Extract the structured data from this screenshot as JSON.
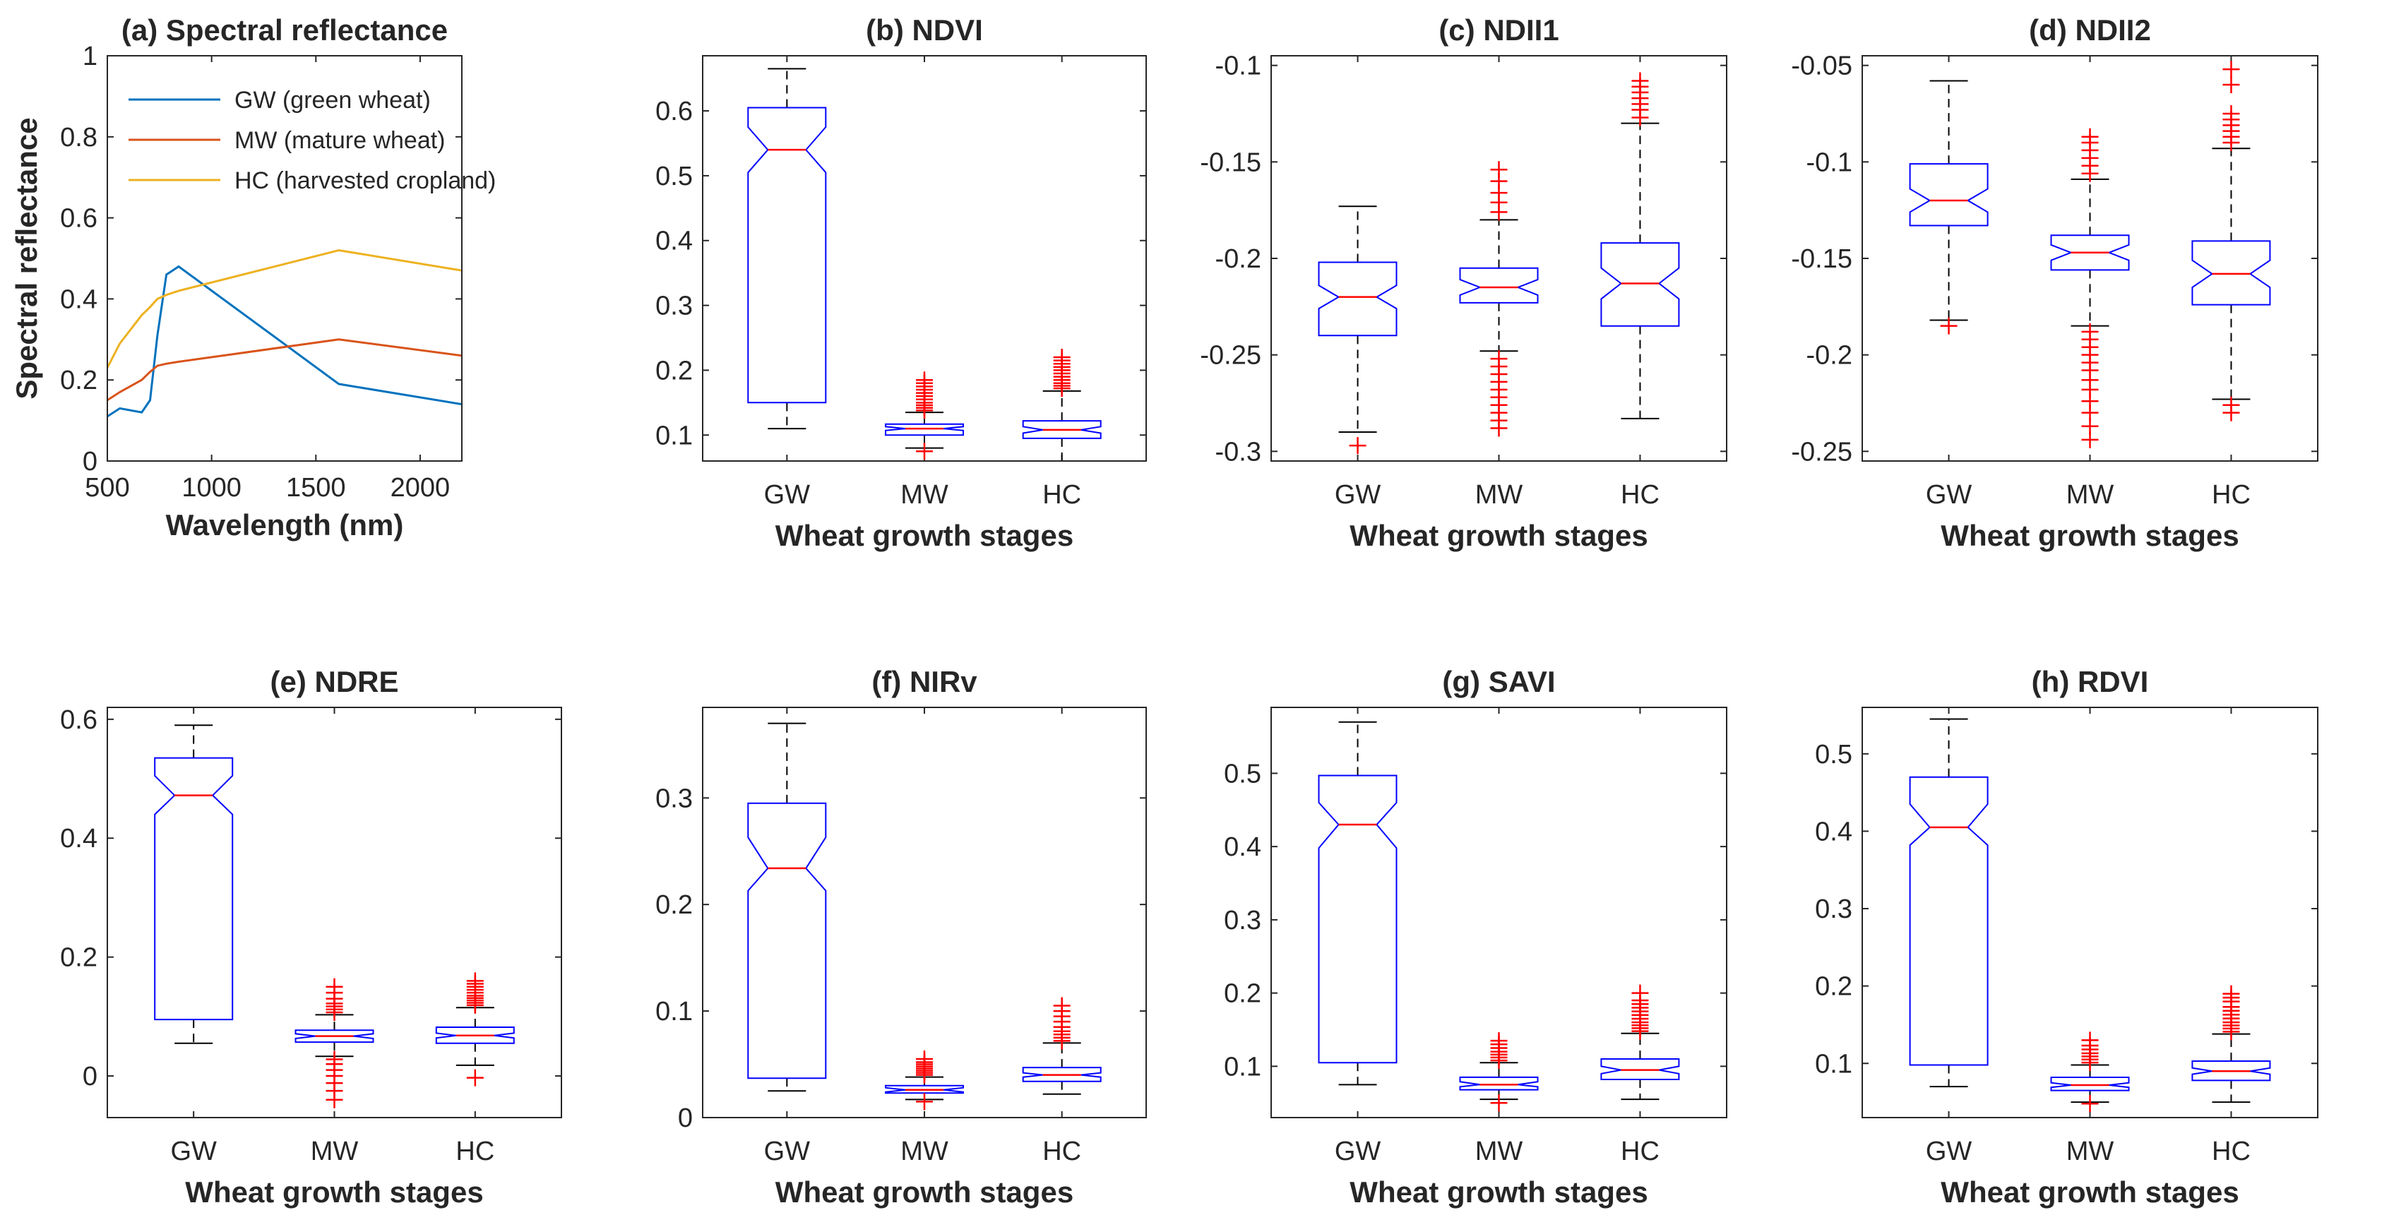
{
  "chart_data": [
    {
      "id": "a",
      "type": "line",
      "title": "(a) Spectral reflectance",
      "xlabel": "Wavelength (nm)",
      "ylabel": "Spectral reflectance",
      "xlim": [
        500,
        2200
      ],
      "ylim": [
        0,
        1
      ],
      "xticks": [
        500,
        1000,
        1500,
        2000
      ],
      "yticks": [
        0,
        0.2,
        0.4,
        0.6,
        0.8,
        1
      ],
      "legend_position": "top-left",
      "series": [
        {
          "name": "GW (green wheat)",
          "color": "#0072bd",
          "x": [
            500,
            560,
            665,
            705,
            740,
            783,
            842,
            1610,
            2200
          ],
          "y": [
            0.11,
            0.13,
            0.12,
            0.15,
            0.31,
            0.46,
            0.48,
            0.19,
            0.14
          ]
        },
        {
          "name": "MW (mature wheat)",
          "color": "#d95319",
          "x": [
            500,
            560,
            665,
            705,
            740,
            783,
            842,
            1610,
            2200
          ],
          "y": [
            0.15,
            0.17,
            0.2,
            0.22,
            0.235,
            0.24,
            0.245,
            0.3,
            0.26
          ]
        },
        {
          "name": "HC (harvested cropland)",
          "color": "#edb120",
          "x": [
            500,
            560,
            665,
            705,
            740,
            783,
            842,
            1610,
            2200
          ],
          "y": [
            0.23,
            0.29,
            0.36,
            0.38,
            0.4,
            0.41,
            0.42,
            0.52,
            0.47
          ]
        }
      ]
    },
    {
      "id": "b",
      "type": "box",
      "title": "(b) NDVI",
      "xlabel": "Wheat growth stages",
      "categories": [
        "GW",
        "MW",
        "HC"
      ],
      "ylim": [
        0.06,
        0.685
      ],
      "yticks": [
        0.1,
        0.2,
        0.3,
        0.4,
        0.5,
        0.6
      ],
      "boxes": [
        {
          "min": 0.11,
          "q1": 0.15,
          "med": 0.54,
          "q3": 0.605,
          "max": 0.665,
          "nlo": 0.505,
          "nhi": 0.575,
          "outliers": []
        },
        {
          "min": 0.08,
          "q1": 0.1,
          "med": 0.11,
          "q3": 0.117,
          "max": 0.135,
          "nlo": 0.107,
          "nhi": 0.113,
          "outliers": [
            0.138,
            0.142,
            0.146,
            0.15,
            0.155,
            0.16,
            0.165,
            0.17,
            0.175,
            0.18,
            0.185,
            0.075
          ]
        },
        {
          "min": 0.06,
          "q1": 0.095,
          "med": 0.108,
          "q3": 0.122,
          "max": 0.168,
          "nlo": 0.103,
          "nhi": 0.113,
          "outliers": [
            0.172,
            0.176,
            0.18,
            0.185,
            0.19,
            0.195,
            0.2,
            0.205,
            0.21,
            0.215,
            0.22
          ]
        }
      ]
    },
    {
      "id": "c",
      "type": "box",
      "title": "(c) NDII1",
      "xlabel": "Wheat growth stages",
      "categories": [
        "GW",
        "MW",
        "HC"
      ],
      "ylim": [
        -0.305,
        -0.095
      ],
      "yticks": [
        -0.3,
        -0.25,
        -0.2,
        -0.15,
        -0.1
      ],
      "boxes": [
        {
          "min": -0.29,
          "q1": -0.24,
          "med": -0.22,
          "q3": -0.202,
          "max": -0.173,
          "nlo": -0.226,
          "nhi": -0.214,
          "outliers": [
            -0.297
          ]
        },
        {
          "min": -0.248,
          "q1": -0.223,
          "med": -0.215,
          "q3": -0.205,
          "max": -0.18,
          "nlo": -0.219,
          "nhi": -0.211,
          "outliers": [
            -0.176,
            -0.171,
            -0.166,
            -0.16,
            -0.154,
            -0.252,
            -0.256,
            -0.26,
            -0.264,
            -0.268,
            -0.272,
            -0.276,
            -0.28,
            -0.284,
            -0.288
          ]
        },
        {
          "min": -0.283,
          "q1": -0.235,
          "med": -0.213,
          "q3": -0.192,
          "max": -0.13,
          "nlo": -0.221,
          "nhi": -0.205,
          "outliers": [
            -0.127,
            -0.123,
            -0.12,
            -0.117,
            -0.114,
            -0.111,
            -0.108
          ]
        }
      ]
    },
    {
      "id": "d",
      "type": "box",
      "title": "(d) NDII2",
      "xlabel": "Wheat growth stages",
      "categories": [
        "GW",
        "MW",
        "HC"
      ],
      "ylim": [
        -0.255,
        -0.045
      ],
      "yticks": [
        -0.25,
        -0.2,
        -0.15,
        -0.1,
        -0.05
      ],
      "boxes": [
        {
          "min": -0.182,
          "q1": -0.133,
          "med": -0.12,
          "q3": -0.101,
          "max": -0.058,
          "nlo": -0.126,
          "nhi": -0.114,
          "outliers": [
            -0.185
          ]
        },
        {
          "min": -0.185,
          "q1": -0.156,
          "med": -0.147,
          "q3": -0.138,
          "max": -0.109,
          "nlo": -0.151,
          "nhi": -0.143,
          "outliers": [
            -0.106,
            -0.102,
            -0.098,
            -0.094,
            -0.09,
            -0.087,
            -0.188,
            -0.192,
            -0.196,
            -0.2,
            -0.204,
            -0.208,
            -0.213,
            -0.218,
            -0.224,
            -0.23,
            -0.237,
            -0.244
          ]
        },
        {
          "min": -0.223,
          "q1": -0.174,
          "med": -0.158,
          "q3": -0.141,
          "max": -0.093,
          "nlo": -0.165,
          "nhi": -0.151,
          "outliers": [
            -0.09,
            -0.087,
            -0.084,
            -0.081,
            -0.078,
            -0.075,
            -0.06,
            -0.052,
            -0.226,
            -0.23
          ]
        }
      ]
    },
    {
      "id": "e",
      "type": "box",
      "title": "(e) NDRE",
      "xlabel": "Wheat growth stages",
      "categories": [
        "GW",
        "MW",
        "HC"
      ],
      "ylim": [
        -0.07,
        0.62
      ],
      "yticks": [
        0,
        0.2,
        0.4,
        0.6
      ],
      "boxes": [
        {
          "min": 0.055,
          "q1": 0.095,
          "med": 0.472,
          "q3": 0.535,
          "max": 0.59,
          "nlo": 0.44,
          "nhi": 0.505,
          "outliers": []
        },
        {
          "min": 0.033,
          "q1": 0.057,
          "med": 0.067,
          "q3": 0.077,
          "max": 0.103,
          "nlo": 0.063,
          "nhi": 0.071,
          "outliers": [
            0.107,
            0.112,
            0.117,
            0.122,
            0.13,
            0.14,
            0.15,
            0.028,
            0.02,
            0.01,
            0.0,
            -0.012,
            -0.025,
            -0.04
          ]
        },
        {
          "min": 0.018,
          "q1": 0.055,
          "med": 0.068,
          "q3": 0.082,
          "max": 0.115,
          "nlo": 0.064,
          "nhi": 0.072,
          "outliers": [
            0.119,
            0.123,
            0.127,
            0.131,
            0.135,
            0.14,
            0.145,
            0.15,
            0.155,
            0.16,
            -0.003
          ]
        }
      ]
    },
    {
      "id": "f",
      "type": "box",
      "title": "(f) NIRv",
      "xlabel": "Wheat growth stages",
      "categories": [
        "GW",
        "MW",
        "HC"
      ],
      "ylim": [
        0,
        0.385
      ],
      "yticks": [
        0,
        0.1,
        0.2,
        0.3
      ],
      "boxes": [
        {
          "min": 0.025,
          "q1": 0.037,
          "med": 0.234,
          "q3": 0.295,
          "max": 0.37,
          "nlo": 0.213,
          "nhi": 0.263,
          "outliers": []
        },
        {
          "min": 0.017,
          "q1": 0.023,
          "med": 0.026,
          "q3": 0.03,
          "max": 0.038,
          "nlo": 0.024,
          "nhi": 0.028,
          "outliers": [
            0.04,
            0.042,
            0.044,
            0.046,
            0.048,
            0.05,
            0.052,
            0.055,
            0.015
          ]
        },
        {
          "min": 0.022,
          "q1": 0.034,
          "med": 0.04,
          "q3": 0.047,
          "max": 0.07,
          "nlo": 0.038,
          "nhi": 0.042,
          "outliers": [
            0.072,
            0.075,
            0.078,
            0.081,
            0.085,
            0.09,
            0.095,
            0.1,
            0.105
          ]
        }
      ]
    },
    {
      "id": "g",
      "type": "box",
      "title": "(g) SAVI",
      "xlabel": "Wheat growth stages",
      "categories": [
        "GW",
        "MW",
        "HC"
      ],
      "ylim": [
        0.03,
        0.59
      ],
      "yticks": [
        0.1,
        0.2,
        0.3,
        0.4,
        0.5
      ],
      "boxes": [
        {
          "min": 0.075,
          "q1": 0.105,
          "med": 0.43,
          "q3": 0.497,
          "max": 0.57,
          "nlo": 0.398,
          "nhi": 0.46,
          "outliers": []
        },
        {
          "min": 0.055,
          "q1": 0.068,
          "med": 0.075,
          "q3": 0.085,
          "max": 0.105,
          "nlo": 0.072,
          "nhi": 0.079,
          "outliers": [
            0.108,
            0.112,
            0.116,
            0.12,
            0.125,
            0.13,
            0.135,
            0.05
          ]
        },
        {
          "min": 0.055,
          "q1": 0.082,
          "med": 0.095,
          "q3": 0.11,
          "max": 0.145,
          "nlo": 0.09,
          "nhi": 0.1,
          "outliers": [
            0.148,
            0.152,
            0.156,
            0.16,
            0.165,
            0.17,
            0.175,
            0.18,
            0.185,
            0.19,
            0.2
          ]
        }
      ]
    },
    {
      "id": "h",
      "type": "box",
      "title": "(h) RDVI",
      "xlabel": "Wheat growth stages",
      "categories": [
        "GW",
        "MW",
        "HC"
      ],
      "ylim": [
        0.03,
        0.56
      ],
      "yticks": [
        0.1,
        0.2,
        0.3,
        0.4,
        0.5
      ],
      "boxes": [
        {
          "min": 0.07,
          "q1": 0.098,
          "med": 0.405,
          "q3": 0.47,
          "max": 0.545,
          "nlo": 0.382,
          "nhi": 0.435,
          "outliers": []
        },
        {
          "min": 0.05,
          "q1": 0.065,
          "med": 0.072,
          "q3": 0.082,
          "max": 0.098,
          "nlo": 0.069,
          "nhi": 0.075,
          "outliers": [
            0.101,
            0.105,
            0.109,
            0.113,
            0.118,
            0.123,
            0.13,
            0.048
          ]
        },
        {
          "min": 0.05,
          "q1": 0.078,
          "med": 0.09,
          "q3": 0.103,
          "max": 0.138,
          "nlo": 0.086,
          "nhi": 0.094,
          "outliers": [
            0.141,
            0.145,
            0.149,
            0.153,
            0.158,
            0.163,
            0.168,
            0.173,
            0.18,
            0.185,
            0.19
          ]
        }
      ]
    }
  ]
}
